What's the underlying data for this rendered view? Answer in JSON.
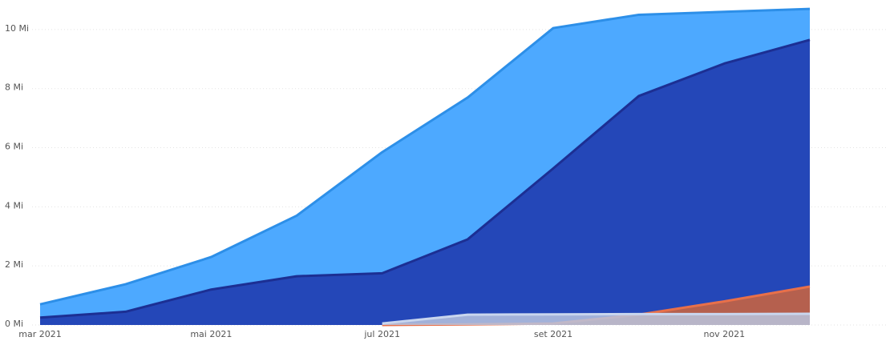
{
  "chart_data": {
    "type": "area",
    "x": [
      "2021-03",
      "2021-04",
      "2021-05",
      "2021-06",
      "2021-07",
      "2021-08",
      "2021-09",
      "2021-10",
      "2021-11",
      "2021-12"
    ],
    "xlim": [
      "2021-03",
      "2021-12"
    ],
    "xticks": [
      {
        "value": "2021-03",
        "label": "mar 2021"
      },
      {
        "value": "2021-05",
        "label": "mai 2021"
      },
      {
        "value": "2021-07",
        "label": "jul 2021"
      },
      {
        "value": "2021-09",
        "label": "set 2021"
      },
      {
        "value": "2021-11",
        "label": "nov 2021"
      }
    ],
    "ylim": [
      0,
      11
    ],
    "yticks": [
      {
        "value": 0,
        "label": "0 Mi"
      },
      {
        "value": 2,
        "label": "2 Mi"
      },
      {
        "value": 4,
        "label": "4 Mi"
      },
      {
        "value": 6,
        "label": "6 Mi"
      },
      {
        "value": 8,
        "label": "8 Mi"
      },
      {
        "value": 10,
        "label": "10 Mi"
      }
    ],
    "grid": true,
    "series": [
      {
        "color": "#4da9ff",
        "values": [
          0.7,
          1.38,
          2.3,
          3.7,
          5.85,
          7.7,
          10.05,
          10.5,
          10.6,
          10.7
        ]
      },
      {
        "color": "#2447b8",
        "values": [
          0.25,
          0.45,
          1.2,
          1.65,
          1.75,
          2.9,
          5.3,
          7.75,
          8.85,
          9.65
        ]
      },
      {
        "color": "#b5604e",
        "values": [
          null,
          null,
          null,
          null,
          0,
          0.02,
          0.05,
          0.35,
          0.8,
          1.3
        ]
      },
      {
        "color": "#b8c4de",
        "values": [
          null,
          null,
          null,
          null,
          0.05,
          0.35,
          0.36,
          0.37,
          0.37,
          0.38
        ]
      }
    ]
  }
}
